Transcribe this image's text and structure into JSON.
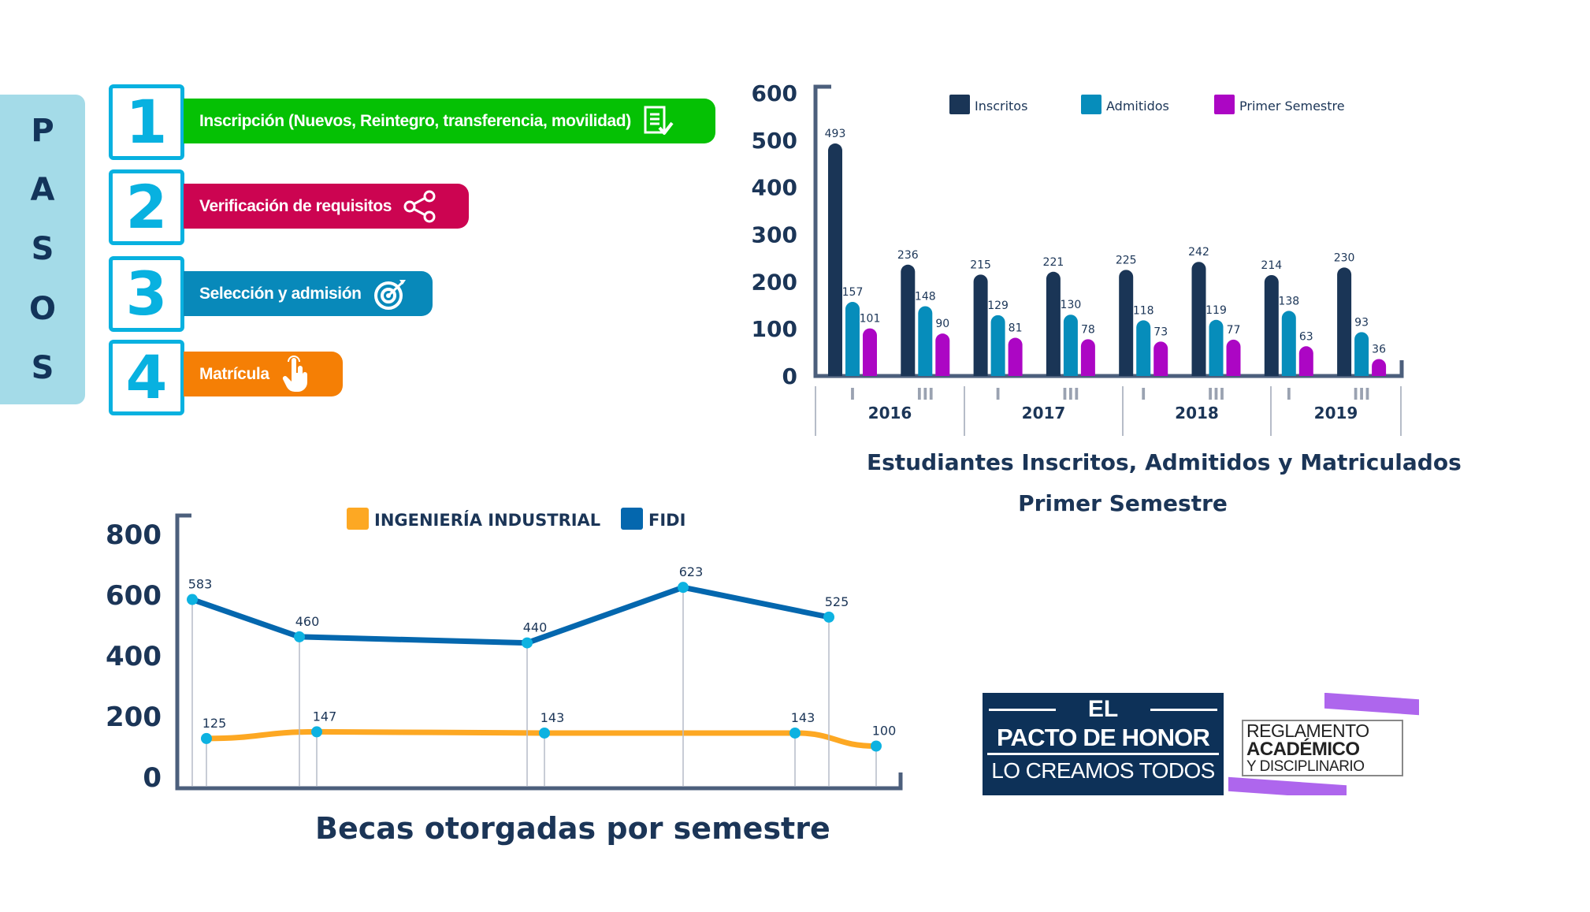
{
  "steps_panel": {
    "letters": [
      "P",
      "A",
      "S",
      "O",
      "S"
    ],
    "steps": [
      {
        "number": "1",
        "label": "Inscripción (Nuevos, Reintegro, transferencia, movilidad)",
        "icon": "document-check-icon",
        "color": "#05c104"
      },
      {
        "number": "2",
        "label": "Verificación de requisitos",
        "icon": "share-icon",
        "color": "#cc0451"
      },
      {
        "number": "3",
        "label": "Selección y admisión",
        "icon": "target-icon",
        "color": "#0889ba"
      },
      {
        "number": "4",
        "label": "Matrícula",
        "icon": "pointer-hand-icon",
        "color": "#f57f05"
      }
    ]
  },
  "chart_data": [
    {
      "type": "bar",
      "title": "Estudiantes Inscritos, Admitidos y Matriculados",
      "subtitle": "Primer Semestre",
      "xlabel": "",
      "ylabel": "",
      "ylim": [
        0,
        600
      ],
      "yticks": [
        0,
        100,
        200,
        300,
        400,
        500,
        600
      ],
      "legend_position": "top",
      "grid": false,
      "categories": [
        "2016-I",
        "2016-III",
        "2017-I",
        "2017-III",
        "2018-I",
        "2018-III",
        "2019-I",
        "2019-III"
      ],
      "semester_labels": [
        "I",
        "III",
        "I",
        "III",
        "I",
        "III",
        "I",
        "III"
      ],
      "year_labels": [
        "2016",
        "2017",
        "2018",
        "2019"
      ],
      "series": [
        {
          "name": "Inscritos",
          "color": "#1a3556",
          "values": [
            493,
            236,
            215,
            221,
            225,
            242,
            214,
            230
          ]
        },
        {
          "name": "Admitidos",
          "color": "#068dbb",
          "values": [
            157,
            148,
            129,
            130,
            118,
            119,
            138,
            93
          ]
        },
        {
          "name": "Primer Semestre",
          "color": "#ac06c4",
          "values": [
            101,
            90,
            81,
            78,
            73,
            77,
            63,
            36
          ]
        }
      ]
    },
    {
      "type": "line",
      "title": "Becas otorgadas por semestre",
      "xlabel": "",
      "ylabel": "",
      "ylim": [
        0,
        800
      ],
      "yticks": [
        0,
        200,
        400,
        600,
        800
      ],
      "legend_position": "top",
      "grid": false,
      "marker_color": "#0db2e1",
      "series": [
        {
          "name": "INGENIERÍA INDUSTRIAL",
          "color": "#fda823",
          "values": [
            125,
            147,
            143,
            143,
            100
          ]
        },
        {
          "name": "FIDI",
          "color": "#0467ae",
          "values": [
            583,
            460,
            440,
            623,
            525
          ]
        }
      ]
    }
  ],
  "logos": {
    "pacto": {
      "line1": "EL",
      "line2": "PACTO DE HONOR",
      "line3": "LO CREAMOS TODOS"
    },
    "reglamento": {
      "line1": "REGLAMENTO",
      "line2": "ACADÉMICO",
      "line3": "Y DISCIPLINARIO"
    }
  }
}
